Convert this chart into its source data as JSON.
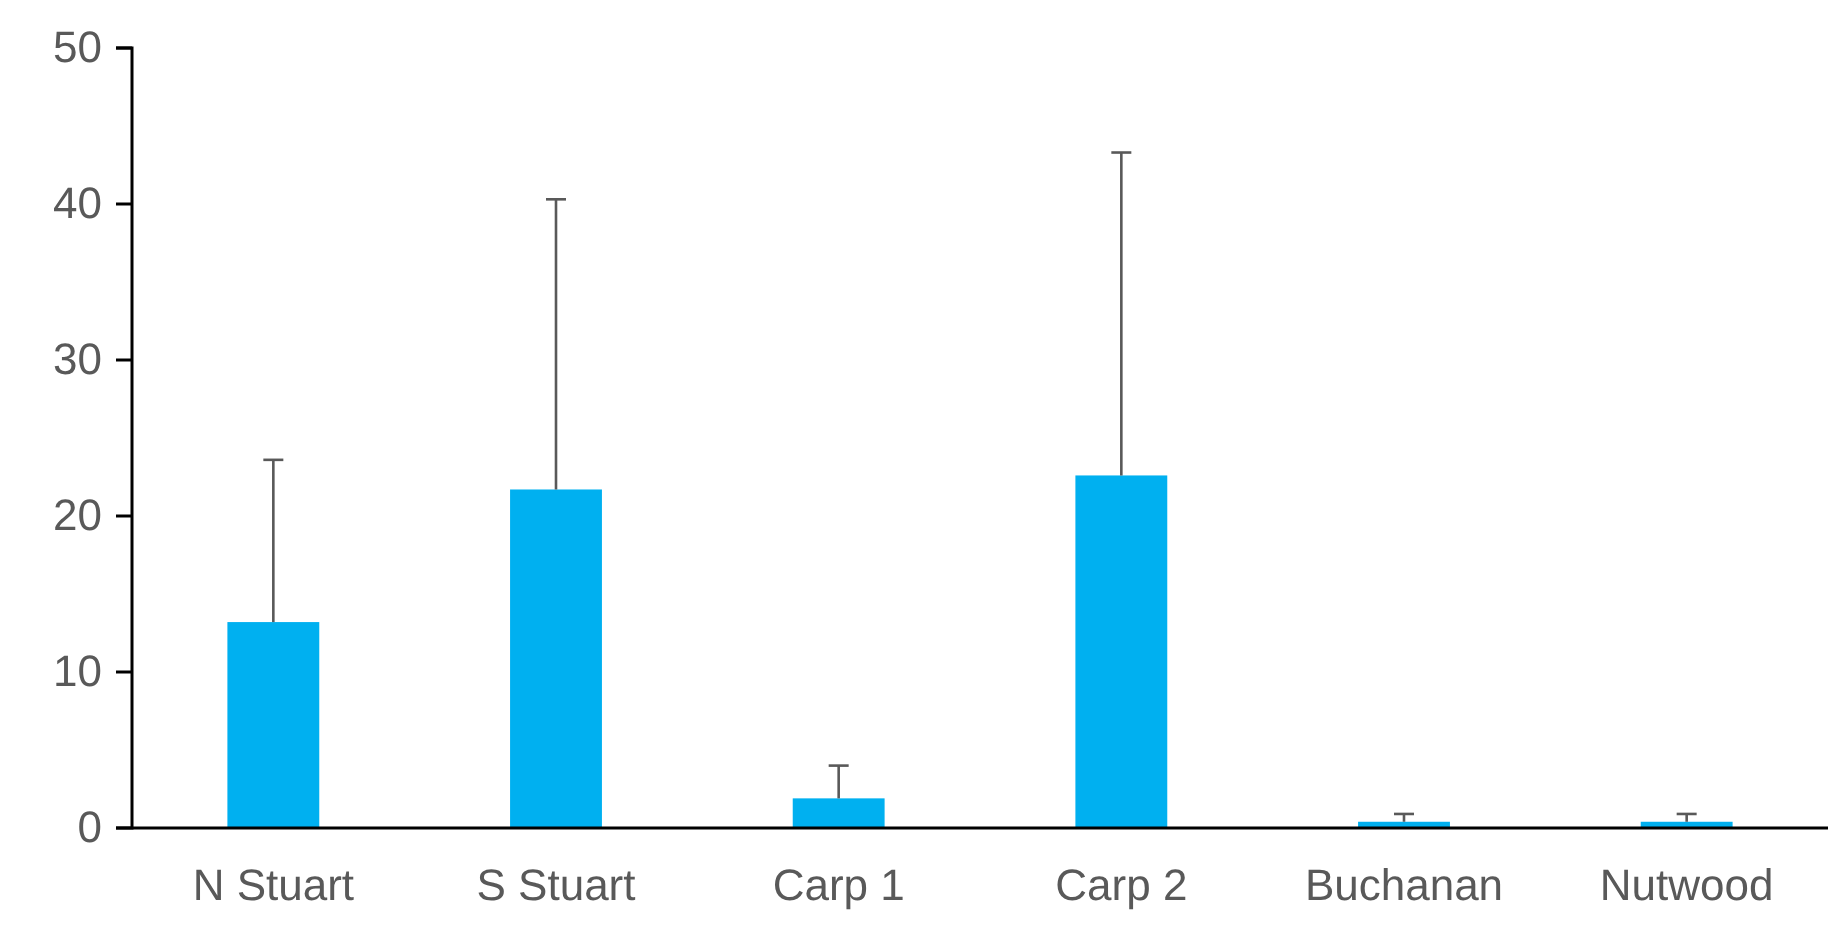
{
  "chart_data": {
    "type": "bar",
    "categories": [
      "N Stuart",
      "S Stuart",
      "Carp 1",
      "Carp 2",
      "Buchanan",
      "Nutwood"
    ],
    "values": [
      13.2,
      21.7,
      1.9,
      22.6,
      0.4,
      0.4
    ],
    "errors": [
      [
        13.2,
        23.6
      ],
      [
        21.7,
        40.3
      ],
      [
        1.9,
        4.0
      ],
      [
        22.6,
        43.3
      ],
      [
        0.4,
        0.9
      ],
      [
        0.4,
        0.9
      ]
    ],
    "color": "#00b0f0",
    "ylim": [
      0,
      50
    ],
    "yticks": [
      0,
      10,
      20,
      30,
      40,
      50
    ],
    "grid": false
  }
}
